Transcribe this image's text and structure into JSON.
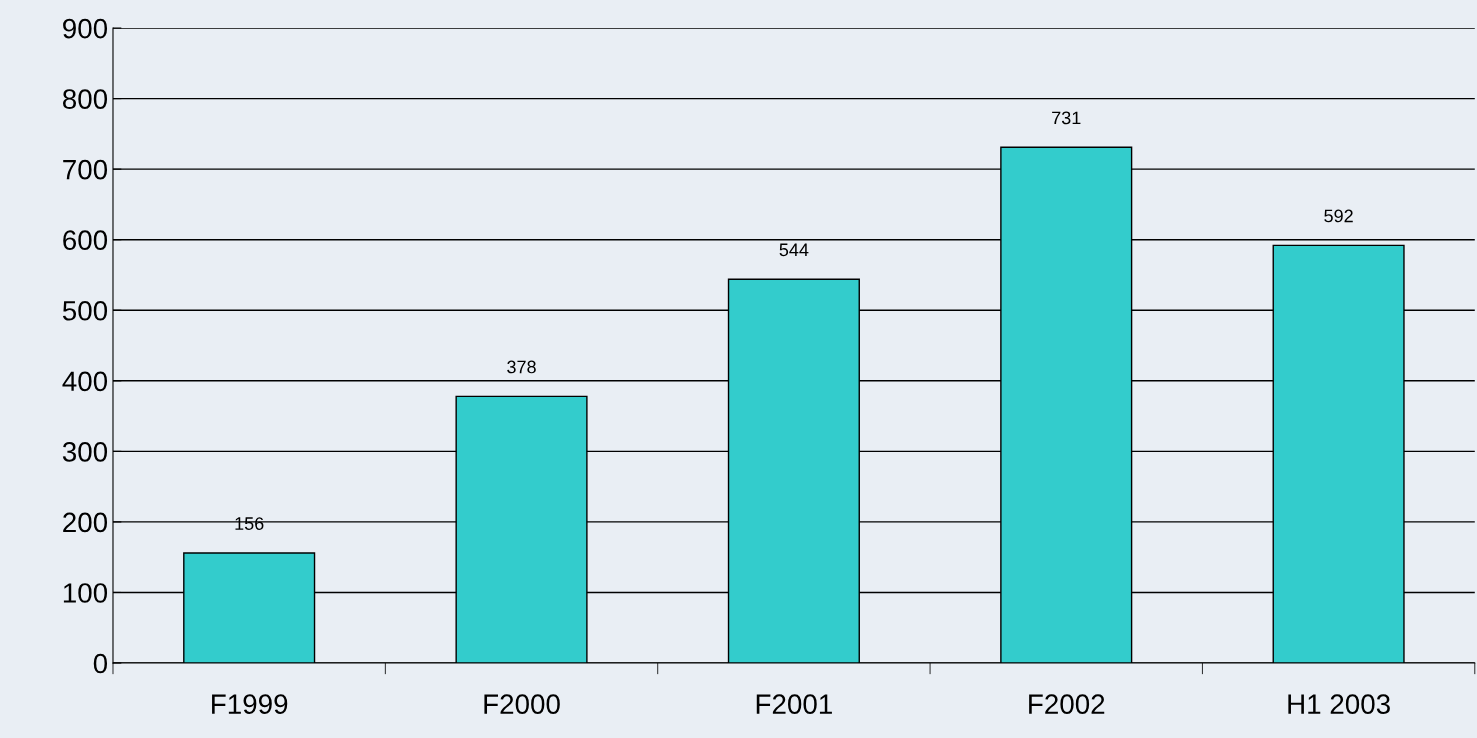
{
  "chart_data": {
    "type": "bar",
    "categories": [
      "F1999",
      "F2000",
      "F2001",
      "F2002",
      "H1 2003"
    ],
    "values": [
      156,
      378,
      544,
      731,
      592
    ],
    "color": "#33cccc",
    "ylim": [
      0,
      900
    ],
    "yticks": [
      0,
      100,
      200,
      300,
      400,
      500,
      600,
      700,
      800,
      900
    ],
    "grid": "y",
    "data_labels": true
  }
}
